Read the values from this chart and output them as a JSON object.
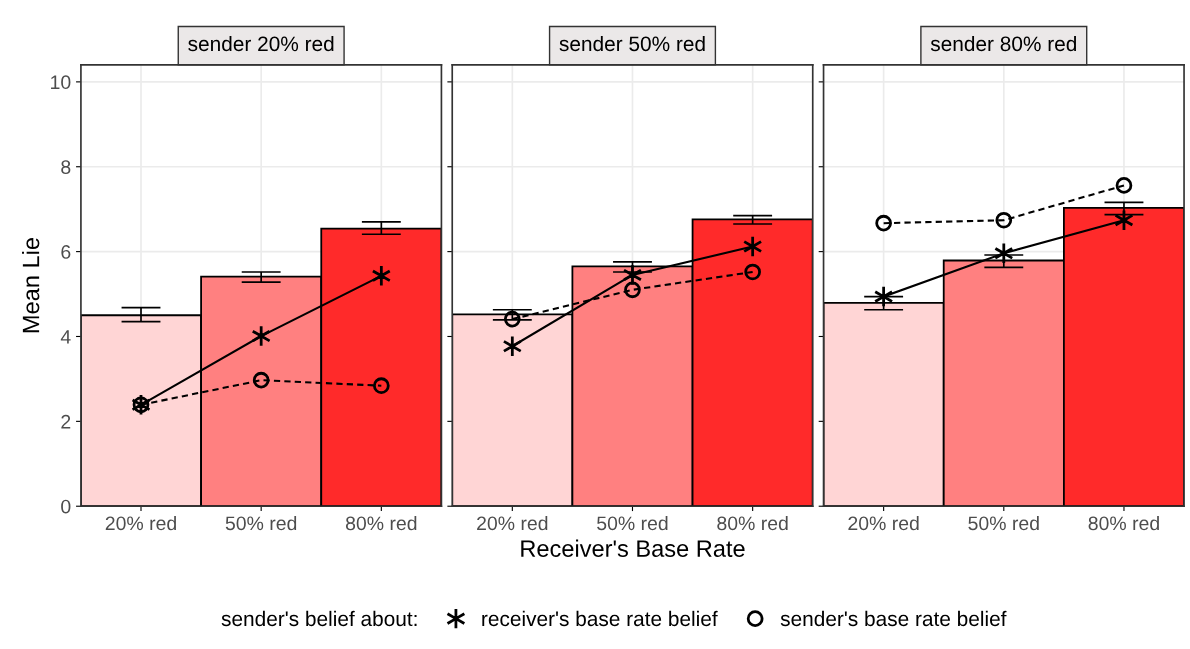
{
  "chart_data": [
    {
      "type": "bar",
      "title": "sender 20% red",
      "ylabel": "Mean Lie",
      "categories": [
        "20% red",
        "50% red",
        "80% red"
      ],
      "ylim": [
        0,
        10.4
      ],
      "yticks": [
        0,
        2,
        4,
        6,
        8,
        10
      ],
      "grid": true,
      "legend": "bottom",
      "legend_title": "sender's belief about:",
      "series": [
        {
          "colors": [
            "#ffd5d5",
            "#ff8080",
            "#ff2a2a"
          ],
          "values": [
            4.5,
            5.41,
            6.54
          ],
          "errors": [
            [
              4.35,
              4.68
            ],
            [
              5.28,
              5.52
            ],
            [
              6.41,
              6.7
            ]
          ]
        },
        {
          "type": "line",
          "name": "receiver's base rate belief",
          "color": "#000000",
          "marker": "cross",
          "line_style": "solid",
          "values": [
            2.39,
            4.01,
            5.43
          ]
        },
        {
          "type": "line",
          "name": "sender's base rate belief",
          "color": "#000000",
          "marker": "circle",
          "line_style": "dashed",
          "values": [
            2.39,
            2.97,
            2.84
          ]
        }
      ]
    },
    {
      "type": "bar",
      "title": "sender 50% red",
      "xlabel": "Receiver's Base Rate",
      "categories": [
        "20% red",
        "50% red",
        "80% red"
      ],
      "ylim": [
        0,
        10.4
      ],
      "yticks": [
        0,
        2,
        4,
        6,
        8,
        10
      ],
      "grid": true,
      "tick_labels": "x",
      "series": [
        {
          "colors": [
            "#ffd5d5",
            "#ff8080",
            "#ff2a2a"
          ],
          "values": [
            4.52,
            5.65,
            6.76
          ],
          "errors": [
            [
              4.39,
              4.63
            ],
            [
              5.52,
              5.76
            ],
            [
              6.65,
              6.85
            ]
          ]
        },
        {
          "type": "line",
          "name": "receiver's base rate belief",
          "color": "#000000",
          "marker": "cross",
          "line_style": "solid",
          "values": [
            3.77,
            5.45,
            6.12
          ]
        },
        {
          "type": "line",
          "name": "sender's base rate belief",
          "color": "#000000",
          "marker": "circle",
          "line_style": "dashed",
          "values": [
            4.41,
            5.1,
            5.52
          ]
        }
      ]
    },
    {
      "type": "bar",
      "title": "sender 80% red",
      "categories": [
        "20% red",
        "50% red",
        "80% red"
      ],
      "ylim": [
        0,
        10.4
      ],
      "yticks": [
        0,
        2,
        4,
        6,
        8,
        10
      ],
      "grid": true,
      "tick_labels": "x",
      "series": [
        {
          "colors": [
            "#ffd5d5",
            "#ff8080",
            "#ff2a2a"
          ],
          "values": [
            4.79,
            5.79,
            7.03
          ],
          "errors": [
            [
              4.63,
              4.94
            ],
            [
              5.63,
              5.92
            ],
            [
              6.87,
              7.16
            ]
          ]
        },
        {
          "type": "line",
          "name": "receiver's base rate belief",
          "color": "#000000",
          "marker": "cross",
          "line_style": "solid",
          "values": [
            4.94,
            5.96,
            6.74
          ]
        },
        {
          "type": "line",
          "name": "sender's base rate belief",
          "color": "#000000",
          "marker": "circle",
          "line_style": "dashed",
          "values": [
            6.67,
            6.74,
            7.56
          ]
        }
      ]
    }
  ]
}
